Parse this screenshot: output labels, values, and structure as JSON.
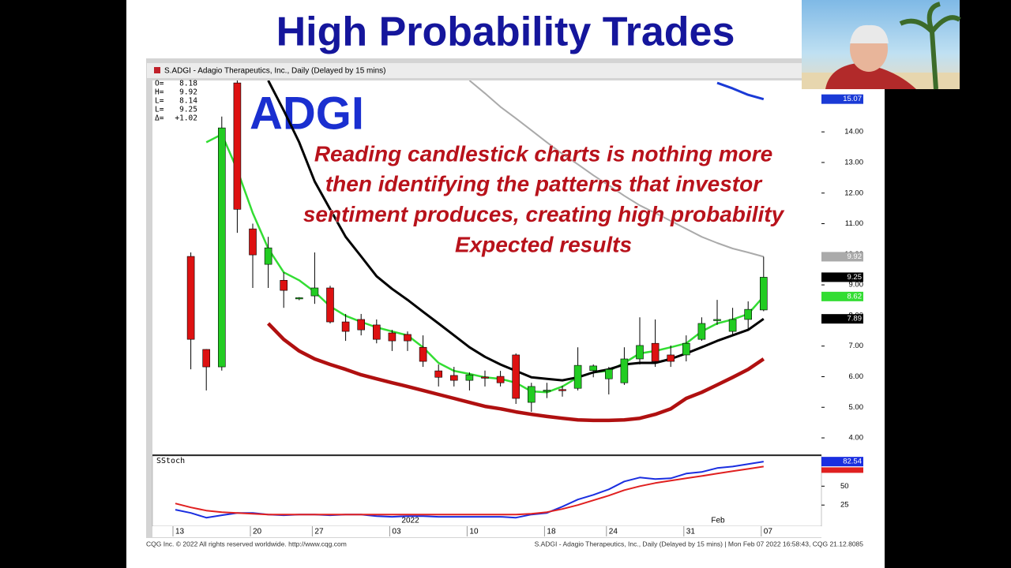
{
  "slide_title": "High Probability Trades",
  "footer_left": "CQG Inc. © 2022 All rights reserved worldwide. http://www.cqg.com",
  "footer_right": "S.ADGI - Adagio Therapeutics, Inc., Daily (Delayed by 15 mins) | Mon Feb 07 2022 16:58:43, CQG 21.12.8085",
  "chart_data": [
    {
      "type": "candlestick",
      "title": "S.ADGI - Adagio Therapeutics, Inc., Daily (Delayed by 15 mins)",
      "symbol": "ADGI",
      "annotation": [
        "Reading candlestick charts is nothing more",
        "then identifying the patterns that investor",
        "sentiment produces, creating high probability",
        "Expected results"
      ],
      "info": [
        {
          "label": "O=",
          "value": "8.18"
        },
        {
          "label": "H=",
          "value": "9.92"
        },
        {
          "label": "L=",
          "value": "8.14"
        },
        {
          "label": "L=",
          "value": "9.25"
        },
        {
          "label": "Δ=",
          "value": "+1.02"
        }
      ],
      "categories": [
        "13",
        null,
        null,
        null,
        null,
        "20",
        null,
        null,
        null,
        "27",
        null,
        null,
        null,
        null,
        "03",
        null,
        null,
        null,
        null,
        "10",
        null,
        null,
        null,
        null,
        "18",
        null,
        null,
        null,
        "24",
        null,
        null,
        null,
        null,
        "31",
        null,
        null,
        null,
        null,
        "07"
      ],
      "period_labels": [
        null,
        null,
        null,
        null,
        null,
        null,
        null,
        null,
        null,
        null,
        null,
        null,
        null,
        null,
        "2022",
        null,
        null,
        null,
        null,
        null,
        null,
        null,
        null,
        null,
        null,
        null,
        null,
        null,
        null,
        null,
        null,
        null,
        null,
        null,
        "Feb",
        null,
        null,
        null,
        null
      ],
      "open": [
        null,
        9.93,
        6.89,
        6.32,
        15.6,
        10.83,
        9.67,
        9.15,
        8.55,
        8.64,
        8.9,
        7.79,
        7.87,
        7.69,
        7.43,
        7.38,
        6.96,
        6.19,
        6.04,
        5.88,
        5.99,
        6.01,
        6.71,
        5.16,
        5.55,
        5.58,
        5.62,
        6.2,
        5.93,
        5.8,
        6.58,
        7.09,
        6.71,
        6.71,
        7.22,
        7.85,
        7.48,
        7.87,
        8.18
      ],
      "high": [
        null,
        10.06,
        6.9,
        14.5,
        16.0,
        11.0,
        10.57,
        9.41,
        8.6,
        10.06,
        8.97,
        8.05,
        8.05,
        7.87,
        7.53,
        7.48,
        7.35,
        6.4,
        6.32,
        6.14,
        6.2,
        6.19,
        6.76,
        5.8,
        5.8,
        5.7,
        6.96,
        6.4,
        6.32,
        6.96,
        7.94,
        7.87,
        7.02,
        7.35,
        7.94,
        8.51,
        8.25,
        8.46,
        9.92
      ],
      "low": [
        null,
        6.24,
        5.55,
        6.2,
        10.7,
        8.9,
        8.9,
        8.25,
        8.5,
        8.38,
        7.74,
        7.17,
        7.35,
        7.09,
        6.84,
        6.84,
        6.32,
        5.68,
        5.68,
        5.55,
        5.68,
        5.68,
        5.11,
        4.85,
        5.3,
        5.35,
        5.55,
        5.98,
        5.42,
        5.73,
        6.4,
        6.32,
        6.32,
        6.5,
        7.17,
        7.69,
        7.35,
        7.53,
        8.14
      ],
      "close": [
        null,
        7.22,
        6.32,
        14.13,
        11.47,
        9.98,
        10.21,
        8.82,
        8.58,
        8.9,
        7.79,
        7.48,
        7.53,
        7.22,
        7.17,
        7.17,
        6.5,
        5.98,
        5.88,
        6.06,
        5.98,
        5.8,
        5.29,
        5.68,
        5.56,
        5.56,
        6.37,
        6.35,
        6.24,
        6.58,
        7.02,
        6.5,
        6.5,
        7.09,
        7.74,
        7.87,
        7.87,
        8.2,
        9.25
      ],
      "up_color": "#22cc22",
      "down_color": "#dd1111",
      "last_label": "9.25",
      "last_label_color": "#000000",
      "series": [
        {
          "color": "#33dd33",
          "width": 2.5,
          "last_label": "8.62",
          "values": [
            null,
            null,
            13.66,
            13.92,
            12.76,
            11.35,
            10.19,
            9.41,
            9.15,
            8.77,
            8.3,
            7.99,
            7.79,
            7.61,
            7.48,
            7.35,
            6.96,
            6.45,
            6.19,
            6.09,
            5.98,
            5.93,
            5.8,
            5.52,
            5.49,
            5.68,
            5.98,
            6.14,
            6.19,
            6.45,
            6.76,
            6.84,
            6.96,
            7.09,
            7.48,
            7.74,
            7.87,
            8.05,
            8.62
          ]
        },
        {
          "color": "#000000",
          "width": 3,
          "last_label": "7.89",
          "values": [
            null,
            null,
            null,
            null,
            null,
            null,
            15.68,
            14.7,
            13.66,
            12.38,
            11.47,
            10.57,
            9.93,
            9.28,
            8.87,
            8.51,
            8.12,
            7.74,
            7.35,
            6.96,
            6.65,
            6.4,
            6.19,
            5.98,
            5.93,
            5.88,
            5.98,
            6.14,
            6.24,
            6.4,
            6.45,
            6.45,
            6.58,
            6.76,
            6.96,
            7.17,
            7.35,
            7.53,
            7.89
          ]
        },
        {
          "color": "#aaaaaa",
          "width": 2,
          "last_label": "9.92",
          "values": [
            null,
            null,
            null,
            null,
            null,
            null,
            null,
            null,
            null,
            null,
            null,
            null,
            null,
            null,
            null,
            null,
            null,
            null,
            null,
            15.68,
            15.26,
            14.82,
            14.44,
            14.05,
            13.66,
            13.28,
            12.94,
            12.58,
            12.25,
            11.91,
            11.6,
            11.35,
            11.09,
            10.83,
            10.57,
            10.37,
            10.19,
            10.06,
            9.92
          ]
        },
        {
          "color": "#b01010",
          "width": 4.5,
          "values": [
            null,
            null,
            null,
            null,
            null,
            null,
            7.74,
            7.22,
            6.84,
            6.58,
            6.4,
            6.24,
            6.06,
            5.93,
            5.8,
            5.68,
            5.55,
            5.42,
            5.29,
            5.16,
            5.03,
            4.95,
            4.85,
            4.77,
            4.7,
            4.64,
            4.59,
            4.57,
            4.57,
            4.59,
            4.64,
            4.77,
            4.95,
            5.29,
            5.49,
            5.73,
            5.98,
            6.24,
            6.58
          ]
        },
        {
          "color": "#1a3ad6",
          "width": 3,
          "last_label": "15.07",
          "values": [
            null,
            null,
            null,
            null,
            null,
            null,
            null,
            null,
            null,
            null,
            null,
            null,
            null,
            null,
            null,
            null,
            null,
            null,
            null,
            null,
            null,
            null,
            null,
            null,
            null,
            null,
            null,
            null,
            null,
            null,
            null,
            null,
            null,
            null,
            null,
            15.6,
            15.42,
            15.21,
            15.07
          ]
        }
      ],
      "ylim": [
        3.46,
        15.68
      ],
      "yticks": [
        {
          "value": 4,
          "label": "4.00"
        },
        {
          "value": 5,
          "label": "5.00"
        },
        {
          "value": 6,
          "label": "6.00"
        },
        {
          "value": 7,
          "label": "7.00"
        },
        {
          "value": 8,
          "label": "8.00"
        },
        {
          "value": 9,
          "label": "9.00"
        },
        {
          "value": 10,
          "label": "10.00"
        },
        {
          "value": 11,
          "label": "11.00"
        },
        {
          "value": 12,
          "label": "12.00"
        },
        {
          "value": 13,
          "label": "13.00"
        },
        {
          "value": 14,
          "label": "14.00"
        }
      ]
    },
    {
      "type": "line",
      "title": "SStoch",
      "series": [
        {
          "color": "#1a2ee0",
          "last_label": "82.54",
          "values": [
            18.8,
            14.6,
            8.3,
            11.5,
            14.6,
            14.6,
            12.5,
            11.5,
            12.5,
            12.5,
            11.5,
            12.5,
            12.5,
            10.4,
            9.4,
            10.4,
            10.4,
            9.4,
            9.4,
            9.4,
            9.4,
            9.4,
            8.3,
            12.5,
            14.6,
            22.9,
            32.3,
            38.5,
            45.8,
            56.3,
            61.5,
            59.4,
            60.4,
            66.7,
            68.8,
            74.0,
            76.0,
            79.2,
            82.54
          ]
        },
        {
          "color": "#e02020",
          "values": [
            27.1,
            21.9,
            17.7,
            15.6,
            14.6,
            13.5,
            12.5,
            12.5,
            12.5,
            12.5,
            12.5,
            12.5,
            12.5,
            12.5,
            12.5,
            12.5,
            12.5,
            12.5,
            12.5,
            12.5,
            12.5,
            12.5,
            12.5,
            13.5,
            15.6,
            19.8,
            25.0,
            31.3,
            37.5,
            44.8,
            50.0,
            54.2,
            57.3,
            60.4,
            63.5,
            66.7,
            69.8,
            72.9,
            76.0
          ]
        }
      ],
      "ylim": [
        -3,
        90
      ],
      "yticks": [
        25,
        50
      ]
    }
  ]
}
